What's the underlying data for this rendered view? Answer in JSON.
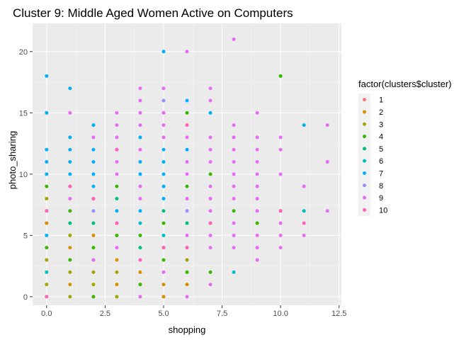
{
  "chart_data": {
    "type": "scatter",
    "title": "Cluster 9: Middle Aged Women Active on Computers",
    "xlabel": "shopping",
    "ylabel": "photo_sharing",
    "xlim": [
      -0.6,
      12.6
    ],
    "ylim": [
      -0.7,
      22.3
    ],
    "x_ticks": [
      0,
      2.5,
      5,
      7.5,
      10,
      12.5
    ],
    "x_tick_labels": [
      "0.0",
      "2.5",
      "5.0",
      "7.5",
      "10.0",
      "12.5"
    ],
    "y_ticks": [
      0,
      5,
      10,
      15,
      20
    ],
    "y_tick_labels": [
      "0",
      "5",
      "10",
      "15",
      "20"
    ],
    "grid": true,
    "legend": {
      "title": "factor(clusters$cluster)",
      "placement": "right"
    },
    "series": [
      {
        "name": "1",
        "color": "#F8766D",
        "points": [
          [
            3,
            12
          ],
          [
            6,
            14
          ],
          [
            6,
            4
          ],
          [
            2,
            8
          ],
          [
            4,
            3
          ],
          [
            1,
            9
          ],
          [
            7,
            6
          ],
          [
            10,
            7
          ],
          [
            3,
            6
          ],
          [
            0,
            7
          ]
        ]
      },
      {
        "name": "2",
        "color": "#D89000",
        "points": [
          [
            0,
            6
          ],
          [
            1,
            4
          ],
          [
            2,
            5
          ],
          [
            3,
            3
          ],
          [
            4,
            2
          ],
          [
            5,
            1
          ],
          [
            6,
            2
          ],
          [
            6,
            1
          ],
          [
            5,
            0
          ],
          [
            3,
            1
          ],
          [
            1,
            1
          ]
        ]
      },
      {
        "name": "3",
        "color": "#A3A500",
        "points": [
          [
            0,
            8
          ],
          [
            1,
            5
          ],
          [
            2,
            3
          ],
          [
            3,
            0
          ],
          [
            4,
            1
          ],
          [
            5,
            4
          ],
          [
            6,
            3
          ],
          [
            0,
            1
          ],
          [
            1,
            0
          ],
          [
            2,
            2
          ],
          [
            1,
            2
          ],
          [
            0,
            3
          ],
          [
            2,
            1
          ],
          [
            3,
            2
          ]
        ]
      },
      {
        "name": "4",
        "color": "#39B600",
        "points": [
          [
            0,
            9
          ],
          [
            1,
            7
          ],
          [
            2,
            0
          ],
          [
            3,
            9
          ],
          [
            4,
            5
          ],
          [
            5,
            3
          ],
          [
            6,
            15
          ],
          [
            6,
            9
          ],
          [
            7,
            10
          ],
          [
            8,
            7
          ],
          [
            9,
            6
          ],
          [
            10,
            18
          ],
          [
            6,
            2
          ],
          [
            7,
            2
          ],
          [
            3,
            5
          ],
          [
            4,
            1
          ],
          [
            2,
            4
          ],
          [
            5,
            6
          ],
          [
            1,
            3
          ],
          [
            0,
            4
          ]
        ]
      },
      {
        "name": "5",
        "color": "#00BF7D",
        "points": [
          [
            2,
            6
          ],
          [
            4,
            4
          ],
          [
            5,
            7
          ],
          [
            6,
            6
          ],
          [
            1,
            6
          ],
          [
            3,
            8
          ]
        ]
      },
      {
        "name": "6",
        "color": "#00BFC4",
        "points": [
          [
            4,
            6
          ],
          [
            8,
            2
          ],
          [
            11,
            7
          ],
          [
            0,
            2
          ],
          [
            5,
            5
          ]
        ]
      },
      {
        "name": "7",
        "color": "#00B0F6",
        "points": [
          [
            0,
            18
          ],
          [
            0,
            15
          ],
          [
            0,
            12
          ],
          [
            0,
            10
          ],
          [
            0,
            11
          ],
          [
            0,
            5
          ],
          [
            1,
            17
          ],
          [
            1,
            13
          ],
          [
            1,
            12
          ],
          [
            1,
            10
          ],
          [
            1,
            11
          ],
          [
            2,
            14
          ],
          [
            2,
            12
          ],
          [
            2,
            11
          ],
          [
            2,
            10
          ],
          [
            2,
            9
          ],
          [
            3,
            7
          ],
          [
            4,
            13
          ],
          [
            4,
            10
          ],
          [
            4,
            11
          ],
          [
            4,
            7
          ],
          [
            5,
            20
          ],
          [
            5,
            12
          ],
          [
            5,
            11
          ],
          [
            5,
            10
          ],
          [
            5,
            9
          ],
          [
            5,
            8
          ],
          [
            6,
            16
          ],
          [
            6,
            12
          ],
          [
            7,
            15
          ],
          [
            11,
            14
          ]
        ]
      },
      {
        "name": "8",
        "color": "#9590FF",
        "points": [
          [
            2,
            7
          ],
          [
            5,
            16
          ],
          [
            6,
            7
          ]
        ]
      },
      {
        "name": "9",
        "color": "#E76BF3",
        "points": [
          [
            8,
            21
          ],
          [
            6,
            20
          ],
          [
            1,
            15
          ],
          [
            3,
            15
          ],
          [
            3,
            14
          ],
          [
            3,
            13
          ],
          [
            4,
            17
          ],
          [
            4,
            16
          ],
          [
            4,
            15
          ],
          [
            4,
            14
          ],
          [
            4,
            12
          ],
          [
            4,
            9
          ],
          [
            4,
            8
          ],
          [
            5,
            17
          ],
          [
            5,
            15
          ],
          [
            5,
            14
          ],
          [
            5,
            13
          ],
          [
            6,
            13
          ],
          [
            6,
            11
          ],
          [
            6,
            10
          ],
          [
            6,
            8
          ],
          [
            6,
            5
          ],
          [
            7,
            17
          ],
          [
            7,
            16
          ],
          [
            7,
            13
          ],
          [
            7,
            12
          ],
          [
            7,
            11
          ],
          [
            7,
            9
          ],
          [
            7,
            8
          ],
          [
            7,
            7
          ],
          [
            7,
            5
          ],
          [
            7,
            4
          ],
          [
            7,
            1
          ],
          [
            8,
            14
          ],
          [
            8,
            13
          ],
          [
            8,
            12
          ],
          [
            8,
            11
          ],
          [
            8,
            10
          ],
          [
            8,
            9
          ],
          [
            8,
            8
          ],
          [
            8,
            6
          ],
          [
            8,
            5
          ],
          [
            8,
            4
          ],
          [
            9,
            15
          ],
          [
            9,
            13
          ],
          [
            9,
            12
          ],
          [
            9,
            11
          ],
          [
            9,
            10
          ],
          [
            9,
            9
          ],
          [
            9,
            8
          ],
          [
            9,
            7
          ],
          [
            9,
            5
          ],
          [
            9,
            4
          ],
          [
            9,
            3
          ],
          [
            10,
            13
          ],
          [
            10,
            12
          ],
          [
            10,
            10
          ],
          [
            10,
            6
          ],
          [
            10,
            5
          ],
          [
            10,
            4
          ],
          [
            11,
            9
          ],
          [
            11,
            5
          ],
          [
            12,
            14
          ],
          [
            12,
            11
          ],
          [
            12,
            7
          ],
          [
            3,
            11
          ],
          [
            3,
            10
          ],
          [
            3,
            4
          ],
          [
            2,
            13
          ],
          [
            5,
            2
          ],
          [
            4,
            0
          ],
          [
            6,
            0
          ],
          [
            3,
            12
          ],
          [
            2,
            3
          ],
          [
            1,
            8
          ]
        ]
      },
      {
        "name": "10",
        "color": "#FF62BC",
        "points": [
          [
            0,
            0
          ],
          [
            0,
            7
          ],
          [
            1,
            9
          ],
          [
            2,
            8
          ],
          [
            3,
            6
          ],
          [
            4,
            3
          ],
          [
            5,
            4
          ],
          [
            6,
            4
          ],
          [
            7,
            6
          ],
          [
            10,
            7
          ],
          [
            11,
            6
          ],
          [
            6,
            14
          ],
          [
            3,
            12
          ]
        ]
      }
    ]
  }
}
